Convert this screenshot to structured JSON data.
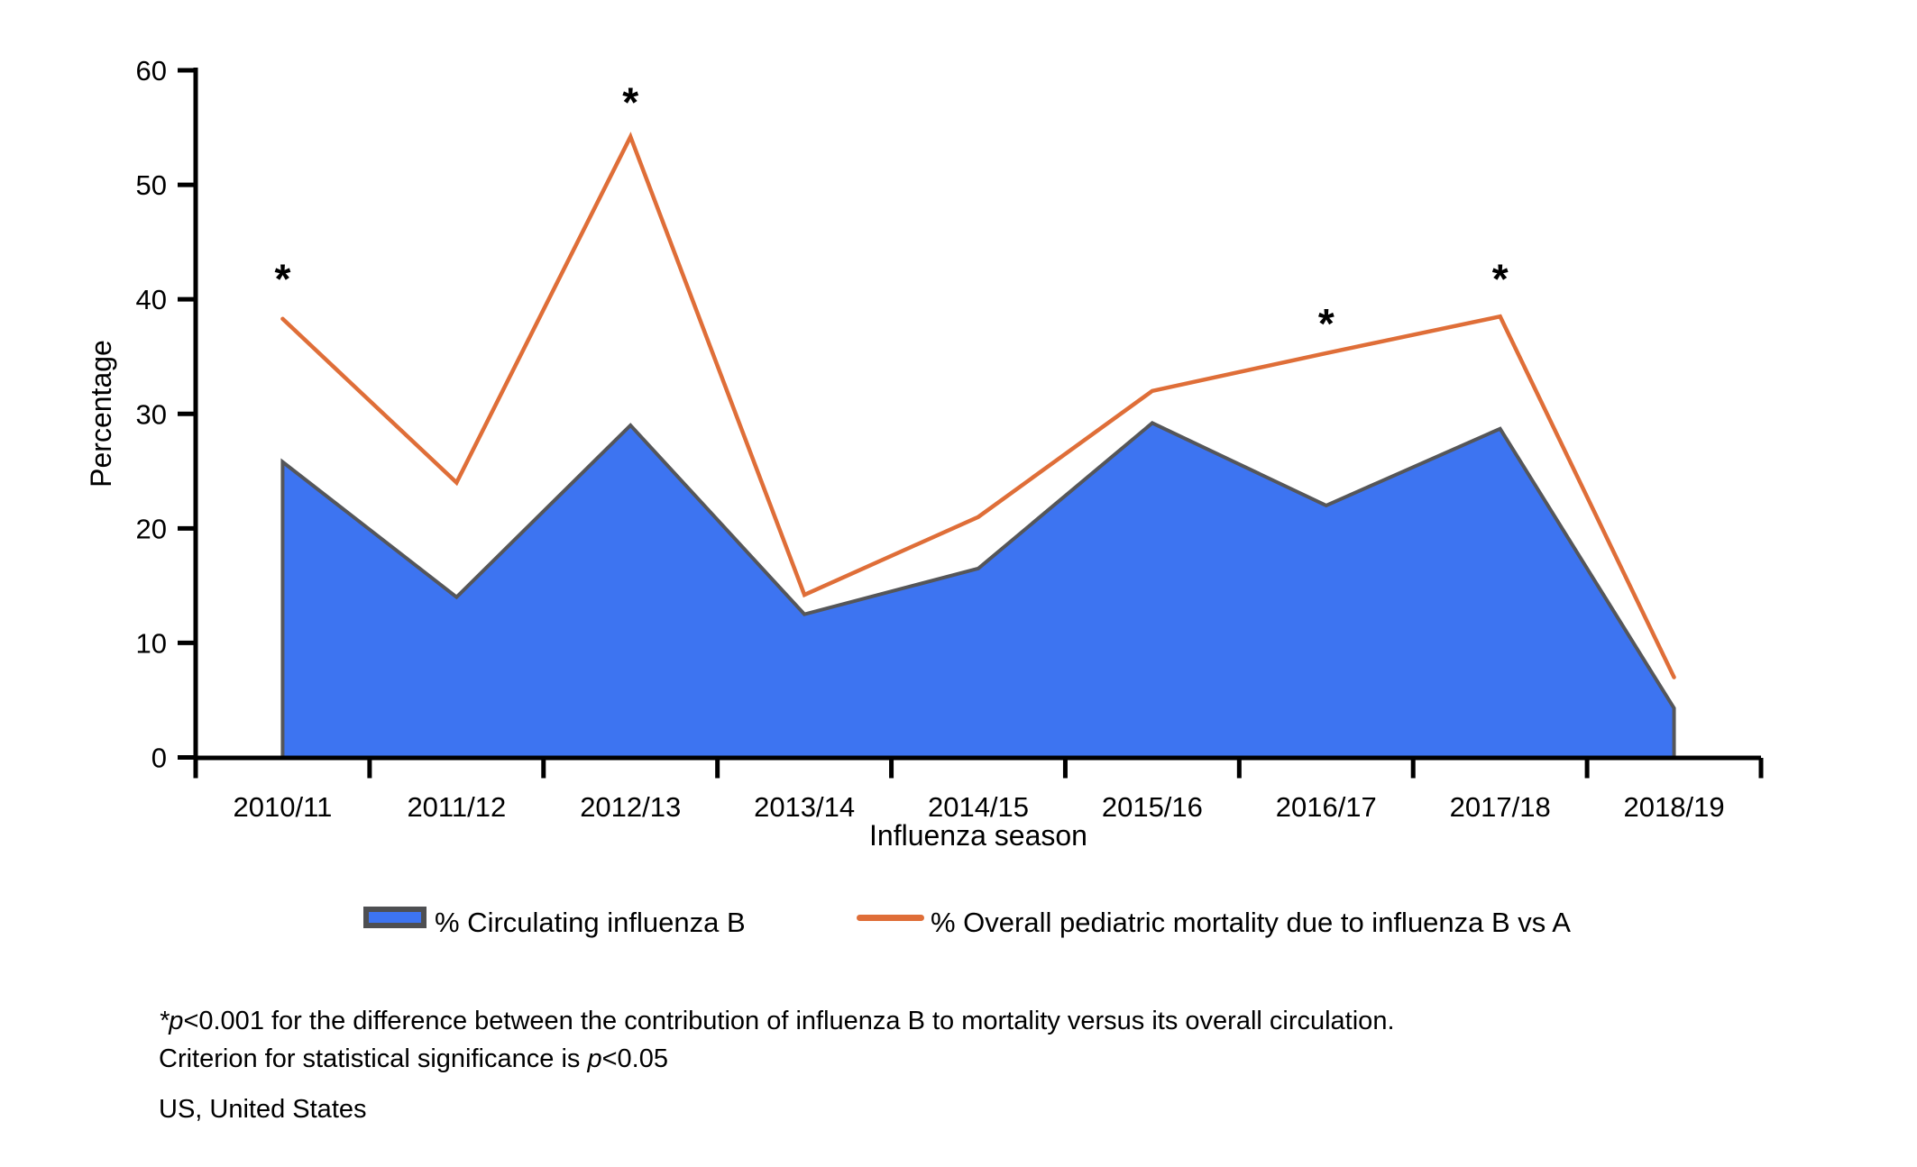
{
  "chart_data": {
    "type": "area+line",
    "title": "",
    "xlabel": "Influenza season",
    "ylabel": "Percentage",
    "ylim": [
      0,
      60
    ],
    "yticks": [
      0,
      10,
      20,
      30,
      40,
      50,
      60
    ],
    "grid": false,
    "categories": [
      "2010/11",
      "2011/12",
      "2012/13",
      "2013/14",
      "2014/15",
      "2015/16",
      "2016/17",
      "2017/18",
      "2018/19"
    ],
    "series": [
      {
        "name": "% Circulating influenza B",
        "type": "area",
        "color": "#3D74F1",
        "outline": "#555659",
        "values": [
          25.8,
          14.0,
          29.0,
          12.5,
          16.5,
          29.2,
          22.0,
          28.7,
          4.3
        ]
      },
      {
        "name": "% Overall pediatric mortality due to influenza B vs A",
        "type": "line",
        "color": "#DF6E38",
        "values": [
          38.3,
          24.0,
          54.2,
          14.2,
          21.0,
          32.0,
          35.3,
          38.5,
          7.0
        ]
      }
    ],
    "annotations": {
      "symbol": "*",
      "seasons": [
        "2010/11",
        "2012/13",
        "2016/17",
        "2017/18"
      ],
      "y_positions": [
        42.3,
        57.7,
        38.4,
        42.3
      ]
    },
    "legend_position": "bottom"
  },
  "legend": {
    "series_b_label": "% Circulating influenza B",
    "mortality_label": "% Overall pediatric mortality due to influenza B vs A"
  },
  "footnotes": {
    "line1_star": "*",
    "line1_p": "p",
    "line1_rest": "<0.001 for the difference between the contribution of influenza B to mortality versus its overall circulation.",
    "line2_pre": "Criterion for statistical significance is ",
    "line2_p": "p",
    "line2_post": "<0.05",
    "abbreviation": "US, United States"
  },
  "colors": {
    "area_fill": "#3D74F1",
    "area_outline": "#555659",
    "line": "#DF6E38",
    "axis": "#000000",
    "background": "#ffffff"
  }
}
